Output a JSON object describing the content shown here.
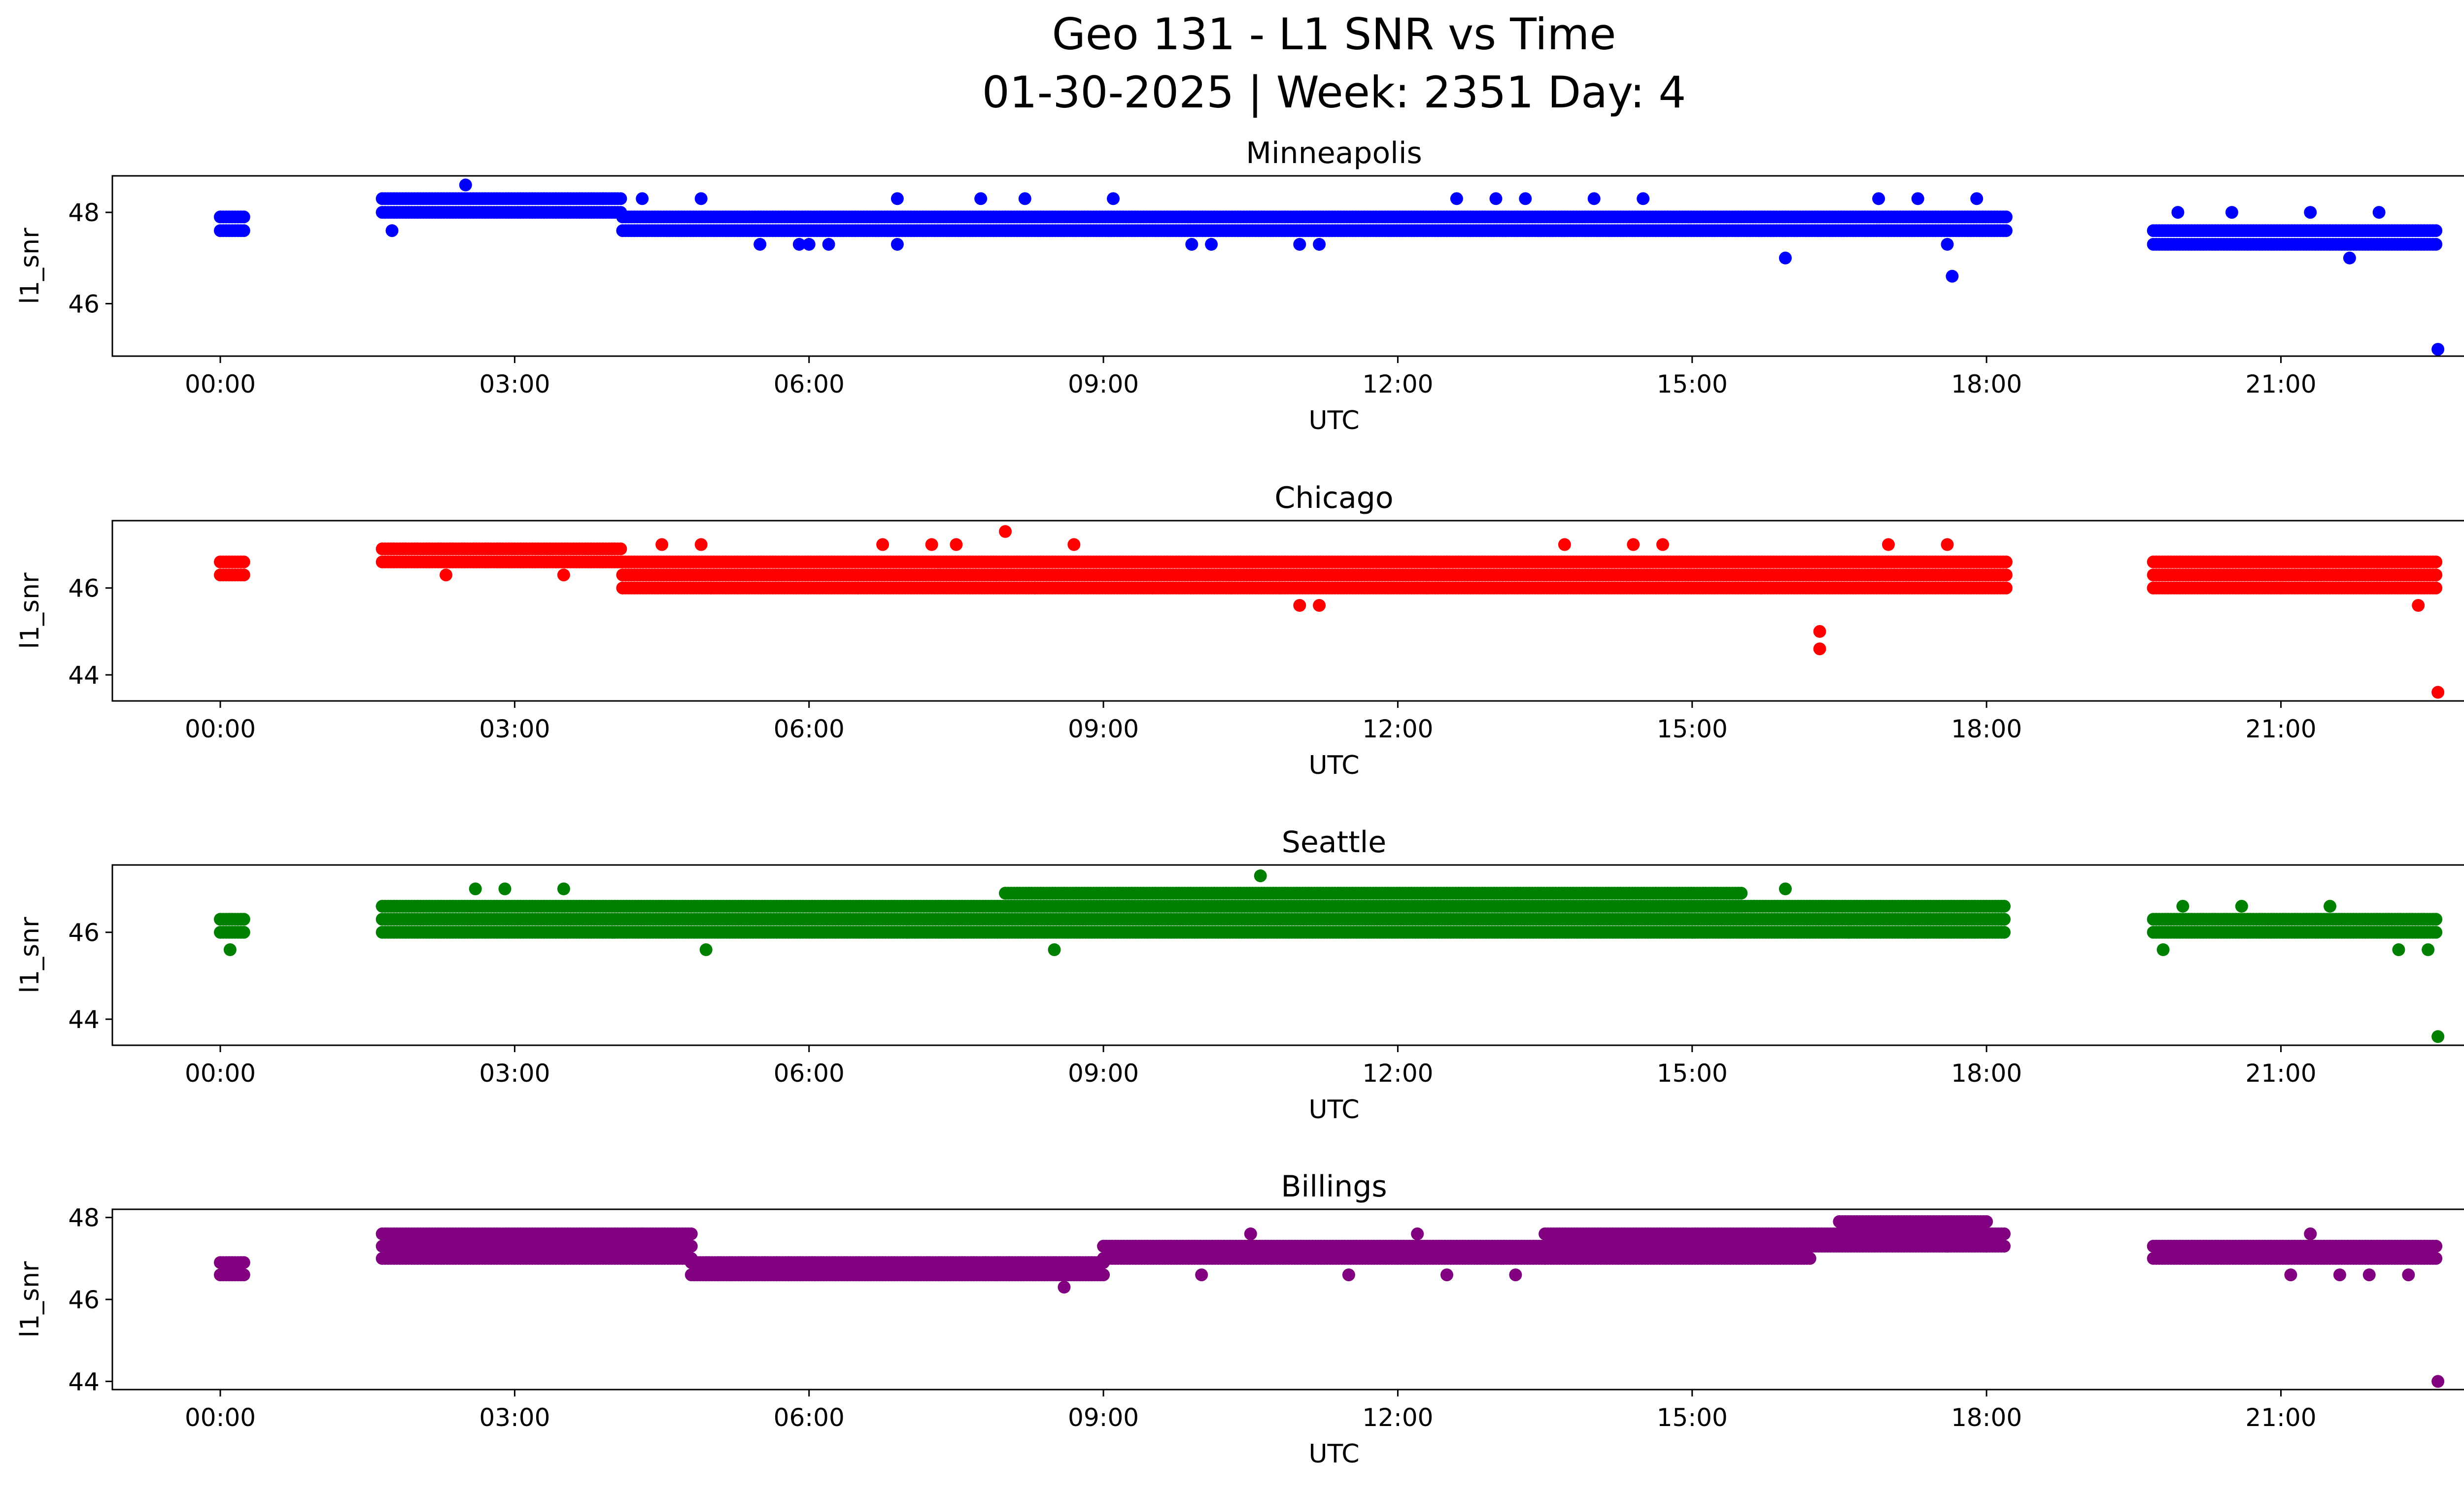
{
  "figure": {
    "title_line1": "Geo 131 - L1 SNR vs Time",
    "title_line2": "01-30-2025 | Week: 2351 Day: 4"
  },
  "chart_data": [
    {
      "type": "scatter",
      "title": "Minneapolis",
      "xlabel": "UTC",
      "ylabel": "l1_snr",
      "color": "#0000ff",
      "xlim": [
        -1.1,
        23.8
      ],
      "ylim": [
        44.85,
        48.8
      ],
      "x_ticks": [
        "00:00",
        "03:00",
        "06:00",
        "09:00",
        "12:00",
        "15:00",
        "18:00",
        "21:00"
      ],
      "y_ticks": [
        46,
        48
      ],
      "bands": [
        {
          "x": [
            0.0,
            0.25
          ],
          "y": [
            48.0,
            47.6
          ]
        },
        {
          "x": [
            1.65,
            4.1
          ],
          "y": [
            48.3,
            48.0
          ]
        },
        {
          "x": [
            4.1,
            18.2
          ],
          "y": [
            48.0,
            47.6
          ]
        },
        {
          "x": [
            19.7,
            22.6
          ],
          "y": [
            47.6,
            47.3
          ]
        }
      ],
      "outliers": [
        [
          1.75,
          47.6
        ],
        [
          2.5,
          48.6
        ],
        [
          3.9,
          48.3
        ],
        [
          4.3,
          48.3
        ],
        [
          4.9,
          48.3
        ],
        [
          5.5,
          47.3
        ],
        [
          5.9,
          47.3
        ],
        [
          6.0,
          47.3
        ],
        [
          6.2,
          47.3
        ],
        [
          6.9,
          48.3
        ],
        [
          6.9,
          47.3
        ],
        [
          7.75,
          48.3
        ],
        [
          8.2,
          48.3
        ],
        [
          9.1,
          48.3
        ],
        [
          9.9,
          47.3
        ],
        [
          10.1,
          47.3
        ],
        [
          11.0,
          47.3
        ],
        [
          11.2,
          47.3
        ],
        [
          12.6,
          48.3
        ],
        [
          13.0,
          48.3
        ],
        [
          13.3,
          48.3
        ],
        [
          14.0,
          48.3
        ],
        [
          14.5,
          48.3
        ],
        [
          15.95,
          47.0
        ],
        [
          16.9,
          48.3
        ],
        [
          17.3,
          48.3
        ],
        [
          17.6,
          47.3
        ],
        [
          17.65,
          46.6
        ],
        [
          17.9,
          48.3
        ],
        [
          19.95,
          48.0
        ],
        [
          20.5,
          48.0
        ],
        [
          21.3,
          48.0
        ],
        [
          21.7,
          47.0
        ],
        [
          22.0,
          48.0
        ],
        [
          22.6,
          45.0
        ]
      ]
    },
    {
      "type": "scatter",
      "title": "Chicago",
      "xlabel": "UTC",
      "ylabel": "l1_snr",
      "color": "#ff0000",
      "xlim": [
        -1.1,
        23.8
      ],
      "ylim": [
        43.4,
        47.55
      ],
      "x_ticks": [
        "00:00",
        "03:00",
        "06:00",
        "09:00",
        "12:00",
        "15:00",
        "18:00",
        "21:00"
      ],
      "y_ticks": [
        44,
        46
      ],
      "bands": [
        {
          "x": [
            0.0,
            0.25
          ],
          "y": [
            46.6,
            46.3
          ]
        },
        {
          "x": [
            1.65,
            4.1
          ],
          "y": [
            47.0,
            46.6
          ]
        },
        {
          "x": [
            4.1,
            18.2
          ],
          "y": [
            46.6,
            46.0
          ]
        },
        {
          "x": [
            19.7,
            22.6
          ],
          "y": [
            46.6,
            46.0
          ]
        }
      ],
      "outliers": [
        [
          2.3,
          46.3
        ],
        [
          3.5,
          46.3
        ],
        [
          4.5,
          47.0
        ],
        [
          4.9,
          47.0
        ],
        [
          5.0,
          46.0
        ],
        [
          6.5,
          46.0
        ],
        [
          6.75,
          47.0
        ],
        [
          7.25,
          47.0
        ],
        [
          7.5,
          47.0
        ],
        [
          8.0,
          47.3
        ],
        [
          8.3,
          46.0
        ],
        [
          8.7,
          47.0
        ],
        [
          9.5,
          46.0
        ],
        [
          10.3,
          46.0
        ],
        [
          10.8,
          46.0
        ],
        [
          11.0,
          45.6
        ],
        [
          11.2,
          45.6
        ],
        [
          12.3,
          46.0
        ],
        [
          13.7,
          47.0
        ],
        [
          14.4,
          47.0
        ],
        [
          14.7,
          47.0
        ],
        [
          15.7,
          46.0
        ],
        [
          16.3,
          45.0
        ],
        [
          16.3,
          44.6
        ],
        [
          17.0,
          47.0
        ],
        [
          17.6,
          47.0
        ],
        [
          19.7,
          46.0
        ],
        [
          21.0,
          46.0
        ],
        [
          22.4,
          45.6
        ],
        [
          22.6,
          43.6
        ]
      ]
    },
    {
      "type": "scatter",
      "title": "Seattle",
      "xlabel": "UTC",
      "ylabel": "l1_snr",
      "color": "#008000",
      "xlim": [
        -1.1,
        23.8
      ],
      "ylim": [
        43.4,
        47.55
      ],
      "x_ticks": [
        "00:00",
        "03:00",
        "06:00",
        "09:00",
        "12:00",
        "15:00",
        "18:00",
        "21:00"
      ],
      "y_ticks": [
        44,
        46
      ],
      "bands": [
        {
          "x": [
            0.0,
            0.25
          ],
          "y": [
            46.3,
            46.0
          ]
        },
        {
          "x": [
            1.65,
            18.2
          ],
          "y": [
            46.6,
            46.0
          ]
        },
        {
          "x": [
            8.0,
            15.5
          ],
          "y": [
            47.0,
            46.6
          ]
        },
        {
          "x": [
            19.7,
            22.6
          ],
          "y": [
            46.3,
            46.0
          ]
        }
      ],
      "outliers": [
        [
          0.1,
          45.6
        ],
        [
          2.6,
          47.0
        ],
        [
          2.9,
          47.0
        ],
        [
          3.5,
          47.0
        ],
        [
          4.0,
          46.0
        ],
        [
          4.95,
          45.6
        ],
        [
          7.0,
          46.0
        ],
        [
          8.5,
          45.6
        ],
        [
          10.6,
          47.3
        ],
        [
          15.0,
          46.0
        ],
        [
          15.95,
          47.0
        ],
        [
          16.6,
          46.0
        ],
        [
          17.2,
          46.0
        ],
        [
          19.8,
          45.6
        ],
        [
          20.0,
          46.6
        ],
        [
          20.6,
          46.6
        ],
        [
          21.5,
          46.6
        ],
        [
          22.2,
          45.6
        ],
        [
          22.5,
          45.6
        ],
        [
          22.6,
          43.6
        ]
      ]
    },
    {
      "type": "scatter",
      "title": "Billings",
      "xlabel": "UTC",
      "ylabel": "l1_snr",
      "color": "#800080",
      "xlim": [
        -1.1,
        23.8
      ],
      "ylim": [
        43.8,
        48.2
      ],
      "x_ticks": [
        "00:00",
        "03:00",
        "06:00",
        "09:00",
        "12:00",
        "15:00",
        "18:00",
        "21:00"
      ],
      "y_ticks": [
        44,
        46,
        48
      ],
      "bands": [
        {
          "x": [
            0.0,
            0.25
          ],
          "y": [
            47.0,
            46.6
          ]
        },
        {
          "x": [
            1.65,
            4.8
          ],
          "y": [
            47.6,
            47.0
          ]
        },
        {
          "x": [
            4.8,
            9.0
          ],
          "y": [
            47.0,
            46.6
          ]
        },
        {
          "x": [
            9.0,
            13.5
          ],
          "y": [
            47.3,
            47.0
          ]
        },
        {
          "x": [
            13.5,
            16.2
          ],
          "y": [
            47.6,
            47.0
          ]
        },
        {
          "x": [
            16.2,
            18.2
          ],
          "y": [
            47.6,
            47.3
          ]
        },
        {
          "x": [
            16.5,
            18.0
          ],
          "y": [
            48.0,
            47.6
          ]
        },
        {
          "x": [
            19.7,
            22.6
          ],
          "y": [
            47.3,
            47.0
          ]
        }
      ],
      "outliers": [
        [
          1.7,
          47.6
        ],
        [
          3.9,
          47.6
        ],
        [
          4.3,
          47.6
        ],
        [
          5.2,
          46.6
        ],
        [
          7.9,
          46.6
        ],
        [
          8.6,
          46.3
        ],
        [
          10.0,
          46.6
        ],
        [
          10.5,
          47.6
        ],
        [
          11.5,
          46.6
        ],
        [
          12.2,
          47.6
        ],
        [
          12.5,
          46.6
        ],
        [
          13.2,
          46.6
        ],
        [
          16.0,
          47.6
        ],
        [
          17.6,
          47.3
        ],
        [
          18.0,
          47.3
        ],
        [
          21.1,
          46.6
        ],
        [
          21.3,
          47.6
        ],
        [
          21.6,
          46.6
        ],
        [
          21.9,
          46.6
        ],
        [
          22.3,
          46.6
        ],
        [
          22.6,
          44.0
        ]
      ]
    }
  ]
}
